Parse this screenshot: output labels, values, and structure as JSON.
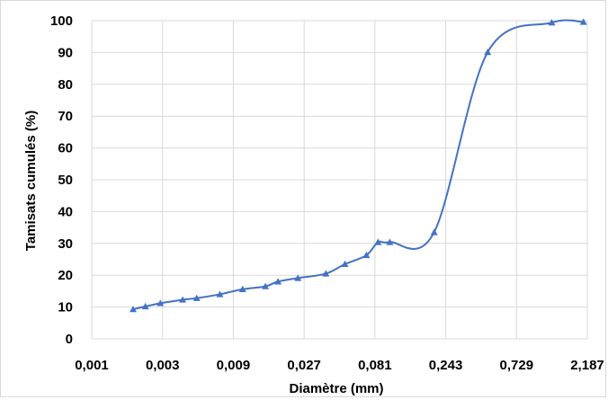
{
  "chart_data": {
    "type": "line",
    "title": "",
    "xlabel": "Diamètre (mm)",
    "ylabel": "Tamisats cumulés (%)",
    "x_scale": "log",
    "xlim": [
      0.001,
      2.187
    ],
    "ylim": [
      0,
      100
    ],
    "grid": true,
    "legend": "none",
    "line_color": "#4472C4",
    "marker": "triangle",
    "x_ticks": [
      0.001,
      0.003,
      0.009,
      0.027,
      0.081,
      0.243,
      0.729,
      2.187
    ],
    "x_tick_labels": [
      "0,001",
      "0,003",
      "0,009",
      "0,027",
      "0,081",
      "0,243",
      "0,729",
      "2,187"
    ],
    "y_ticks": [
      0,
      10,
      20,
      30,
      40,
      50,
      60,
      70,
      80,
      90,
      100
    ],
    "y_tick_labels": [
      "0",
      "10",
      "20",
      "30",
      "40",
      "50",
      "60",
      "70",
      "80",
      "90",
      "100"
    ],
    "series": [
      {
        "x": [
          0.0019,
          0.0023,
          0.0029,
          0.0041,
          0.0051,
          0.0073,
          0.0104,
          0.0148,
          0.018,
          0.0245,
          0.0378,
          0.0509,
          0.071,
          0.085,
          0.102,
          0.203,
          0.466,
          1.26,
          2.06
        ],
        "y": [
          9.3,
          10.2,
          11.2,
          12.3,
          12.8,
          14.0,
          15.6,
          16.5,
          18.0,
          19.1,
          20.5,
          23.5,
          26.3,
          30.4,
          30.4,
          33.5,
          90.1,
          99.4,
          99.6
        ]
      }
    ]
  }
}
